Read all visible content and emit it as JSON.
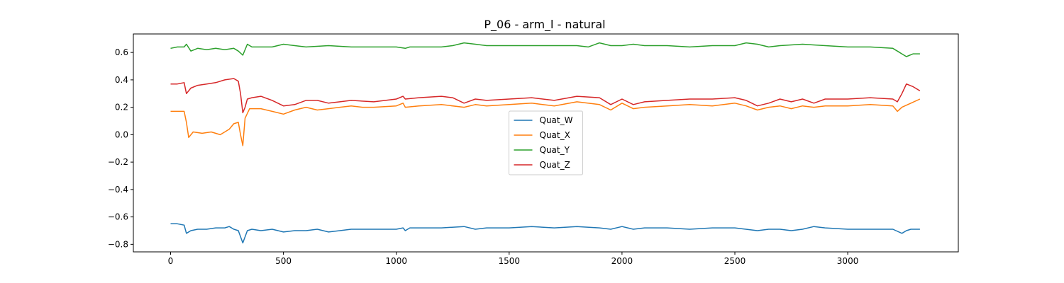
{
  "chart_data": {
    "type": "line",
    "title": "P_06 - arm_l - natural",
    "xlabel": "",
    "ylabel": "",
    "xlim": [
      -165,
      3490
    ],
    "ylim": [
      -0.855,
      0.735
    ],
    "xticks": [
      0,
      500,
      1000,
      1500,
      2000,
      2500,
      3000
    ],
    "xtick_labels": [
      "0",
      "500",
      "1000",
      "1500",
      "2000",
      "2500",
      "3000"
    ],
    "yticks": [
      0.6,
      0.4,
      0.2,
      0.0,
      -0.2,
      -0.4,
      -0.6,
      -0.8
    ],
    "ytick_labels": [
      "0.6",
      "0.4",
      "0.2",
      "0.0",
      "−0.2",
      "−0.4",
      "−0.6",
      "−0.8"
    ],
    "grid": false,
    "legend_position": "center",
    "series": [
      {
        "name": "Quat_W",
        "color": "#1f77b4",
        "x": [
          0,
          30,
          60,
          70,
          90,
          120,
          160,
          200,
          240,
          260,
          280,
          300,
          320,
          340,
          360,
          400,
          450,
          500,
          550,
          600,
          650,
          700,
          750,
          800,
          900,
          1000,
          1030,
          1040,
          1060,
          1100,
          1200,
          1300,
          1350,
          1400,
          1500,
          1600,
          1700,
          1800,
          1900,
          1950,
          2000,
          2050,
          2100,
          2200,
          2300,
          2400,
          2500,
          2600,
          2650,
          2700,
          2750,
          2800,
          2850,
          2900,
          3000,
          3100,
          3200,
          3240,
          3260,
          3280,
          3320
        ],
        "y": [
          -0.65,
          -0.65,
          -0.66,
          -0.72,
          -0.7,
          -0.69,
          -0.69,
          -0.68,
          -0.68,
          -0.67,
          -0.69,
          -0.7,
          -0.79,
          -0.7,
          -0.69,
          -0.7,
          -0.69,
          -0.71,
          -0.7,
          -0.7,
          -0.69,
          -0.71,
          -0.7,
          -0.69,
          -0.69,
          -0.69,
          -0.68,
          -0.7,
          -0.68,
          -0.68,
          -0.68,
          -0.67,
          -0.69,
          -0.68,
          -0.68,
          -0.67,
          -0.68,
          -0.67,
          -0.68,
          -0.69,
          -0.67,
          -0.69,
          -0.68,
          -0.68,
          -0.69,
          -0.68,
          -0.68,
          -0.7,
          -0.69,
          -0.69,
          -0.7,
          -0.69,
          -0.67,
          -0.68,
          -0.69,
          -0.69,
          -0.69,
          -0.72,
          -0.7,
          -0.69,
          -0.69
        ]
      },
      {
        "name": "Quat_X",
        "color": "#ff7f0e",
        "x": [
          0,
          30,
          60,
          70,
          80,
          100,
          140,
          180,
          220,
          260,
          280,
          300,
          310,
          320,
          330,
          350,
          400,
          450,
          500,
          550,
          600,
          650,
          700,
          750,
          800,
          850,
          900,
          1000,
          1030,
          1040,
          1100,
          1200,
          1300,
          1350,
          1400,
          1500,
          1600,
          1700,
          1800,
          1900,
          1950,
          2000,
          2050,
          2100,
          2200,
          2300,
          2400,
          2500,
          2550,
          2600,
          2650,
          2700,
          2750,
          2800,
          2850,
          2900,
          3000,
          3100,
          3200,
          3220,
          3240,
          3280,
          3320
        ],
        "y": [
          0.17,
          0.17,
          0.17,
          0.09,
          -0.02,
          0.02,
          0.01,
          0.02,
          0.0,
          0.04,
          0.08,
          0.09,
          0.0,
          -0.08,
          0.12,
          0.19,
          0.19,
          0.17,
          0.15,
          0.18,
          0.2,
          0.18,
          0.19,
          0.2,
          0.21,
          0.2,
          0.2,
          0.21,
          0.23,
          0.2,
          0.21,
          0.22,
          0.2,
          0.22,
          0.21,
          0.22,
          0.23,
          0.21,
          0.24,
          0.22,
          0.18,
          0.23,
          0.19,
          0.2,
          0.21,
          0.22,
          0.21,
          0.23,
          0.21,
          0.18,
          0.2,
          0.21,
          0.19,
          0.21,
          0.2,
          0.21,
          0.21,
          0.22,
          0.21,
          0.17,
          0.2,
          0.23,
          0.26
        ]
      },
      {
        "name": "Quat_Y",
        "color": "#2ca02c",
        "x": [
          0,
          30,
          60,
          70,
          90,
          120,
          160,
          200,
          240,
          280,
          300,
          320,
          340,
          360,
          400,
          450,
          500,
          550,
          600,
          700,
          800,
          900,
          1000,
          1040,
          1060,
          1100,
          1200,
          1250,
          1300,
          1350,
          1400,
          1500,
          1600,
          1700,
          1800,
          1850,
          1900,
          1950,
          2000,
          2050,
          2100,
          2200,
          2300,
          2400,
          2500,
          2550,
          2600,
          2650,
          2700,
          2800,
          2900,
          3000,
          3100,
          3200,
          3230,
          3260,
          3290,
          3320
        ],
        "y": [
          0.63,
          0.64,
          0.64,
          0.66,
          0.61,
          0.63,
          0.62,
          0.63,
          0.62,
          0.63,
          0.61,
          0.58,
          0.66,
          0.64,
          0.64,
          0.64,
          0.66,
          0.65,
          0.64,
          0.65,
          0.64,
          0.64,
          0.64,
          0.63,
          0.64,
          0.64,
          0.64,
          0.65,
          0.67,
          0.66,
          0.65,
          0.65,
          0.65,
          0.65,
          0.65,
          0.64,
          0.67,
          0.65,
          0.65,
          0.66,
          0.65,
          0.65,
          0.64,
          0.65,
          0.65,
          0.67,
          0.66,
          0.64,
          0.65,
          0.66,
          0.65,
          0.64,
          0.64,
          0.63,
          0.6,
          0.57,
          0.59,
          0.59
        ]
      },
      {
        "name": "Quat_Z",
        "color": "#d62728",
        "x": [
          0,
          30,
          60,
          70,
          90,
          120,
          160,
          200,
          240,
          280,
          300,
          310,
          320,
          330,
          340,
          360,
          400,
          450,
          500,
          550,
          600,
          650,
          700,
          750,
          800,
          900,
          1000,
          1030,
          1040,
          1100,
          1200,
          1250,
          1300,
          1350,
          1400,
          1500,
          1600,
          1700,
          1800,
          1900,
          1950,
          2000,
          2050,
          2100,
          2200,
          2300,
          2400,
          2500,
          2550,
          2600,
          2650,
          2700,
          2750,
          2800,
          2850,
          2900,
          3000,
          3100,
          3200,
          3220,
          3240,
          3260,
          3290,
          3320
        ],
        "y": [
          0.37,
          0.37,
          0.38,
          0.3,
          0.34,
          0.36,
          0.37,
          0.38,
          0.4,
          0.41,
          0.39,
          0.3,
          0.16,
          0.2,
          0.26,
          0.27,
          0.28,
          0.25,
          0.21,
          0.22,
          0.25,
          0.25,
          0.23,
          0.24,
          0.25,
          0.24,
          0.26,
          0.28,
          0.26,
          0.27,
          0.28,
          0.27,
          0.23,
          0.26,
          0.25,
          0.26,
          0.27,
          0.25,
          0.28,
          0.27,
          0.22,
          0.26,
          0.22,
          0.24,
          0.25,
          0.26,
          0.26,
          0.27,
          0.25,
          0.21,
          0.23,
          0.26,
          0.24,
          0.26,
          0.23,
          0.26,
          0.26,
          0.27,
          0.26,
          0.24,
          0.3,
          0.37,
          0.35,
          0.32
        ]
      }
    ]
  }
}
